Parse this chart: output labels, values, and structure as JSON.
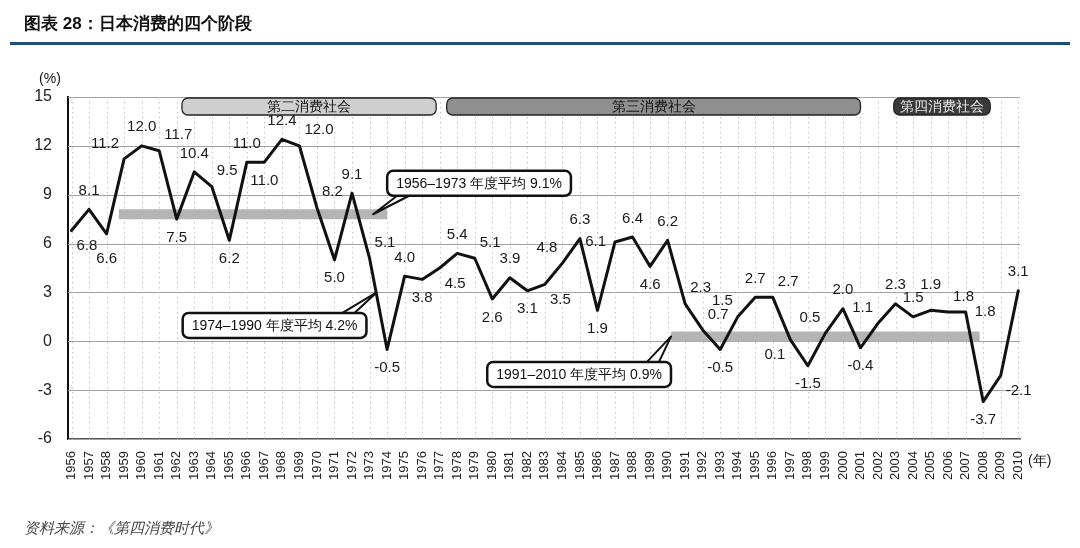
{
  "chart_data": {
    "type": "line",
    "title": "图表 28：日本消费的四个阶段",
    "xlabel": "(年)",
    "ylabel": "(%)",
    "x": [
      1956,
      1957,
      1958,
      1959,
      1960,
      1961,
      1962,
      1963,
      1964,
      1965,
      1966,
      1967,
      1968,
      1969,
      1970,
      1971,
      1972,
      1973,
      1974,
      1975,
      1976,
      1977,
      1978,
      1979,
      1980,
      1981,
      1982,
      1983,
      1984,
      1985,
      1986,
      1987,
      1988,
      1989,
      1990,
      1991,
      1992,
      1993,
      1994,
      1995,
      1996,
      1997,
      1998,
      1999,
      2000,
      2001,
      2002,
      2003,
      2004,
      2005,
      2006,
      2007,
      2008,
      2009,
      2010
    ],
    "series": [
      {
        "color": "#111111",
        "values": [
          6.8,
          8.1,
          6.6,
          11.2,
          12.0,
          11.7,
          7.5,
          10.4,
          9.5,
          6.2,
          11.0,
          11.0,
          12.4,
          12.0,
          8.2,
          5.0,
          9.1,
          5.1,
          -0.5,
          4.0,
          3.8,
          4.5,
          5.4,
          5.1,
          2.6,
          3.9,
          3.1,
          3.5,
          4.8,
          6.3,
          1.9,
          6.1,
          6.4,
          4.6,
          6.2,
          2.3,
          0.7,
          -0.5,
          1.5,
          2.7,
          2.7,
          0.1,
          -1.5,
          0.5,
          2.0,
          -0.4,
          1.1,
          2.3,
          1.5,
          1.9,
          1.8,
          1.8,
          -3.7,
          -2.1,
          3.1
        ],
        "value_labels": [
          "6.8",
          "8.1",
          "6.6",
          "11.2",
          "12.0",
          "11.7",
          "7.5",
          "10.4",
          "9.5",
          "6.2",
          "11.0",
          "11.0",
          "12.4",
          "12.0",
          "8.2",
          "5.0",
          "9.1",
          "5.1",
          "-0.5",
          "4.0",
          "3.8",
          "4.5",
          "5.4",
          "5.1",
          "2.6",
          "3.9",
          "3.1",
          "3.5",
          "4.8",
          "6.3",
          "1.9",
          "6.1",
          "6.4",
          "4.6",
          "6.2",
          "2.3",
          "0.7",
          "-0.5",
          "1.5",
          "2.7",
          "2.7",
          "0.1",
          "-1.5",
          "0.5",
          "2.0",
          "-0.4",
          "1.1",
          "2.3",
          "1.5",
          "1.9",
          "1.8",
          "1.8",
          "-3.7",
          "-2.1",
          "3.1"
        ]
      },
      {
        "type": "line",
        "color": "#b4b4b4",
        "x": [
          1958.7,
          1974.0
        ],
        "values": [
          7.8,
          7.8
        ]
      },
      {
        "type": "line",
        "color": "#b4b4b4",
        "x": [
          1990.2,
          2007.8
        ],
        "values": [
          0.3,
          0.3
        ]
      }
    ],
    "xlim": [
      1955.8,
      2010.1
    ],
    "xticks": [
      1956,
      1957,
      1958,
      1959,
      1960,
      1961,
      1962,
      1963,
      1964,
      1965,
      1966,
      1967,
      1968,
      1969,
      1970,
      1971,
      1972,
      1973,
      1974,
      1975,
      1976,
      1977,
      1978,
      1979,
      1980,
      1981,
      1982,
      1983,
      1984,
      1985,
      1986,
      1987,
      1988,
      1989,
      1990,
      1991,
      1992,
      1993,
      1994,
      1995,
      1996,
      1997,
      1998,
      1999,
      2000,
      2001,
      2002,
      2003,
      2004,
      2005,
      2006,
      2007,
      2008,
      2009,
      2010
    ],
    "ylim": [
      -6,
      15
    ],
    "yticks": [
      15,
      12,
      9,
      6,
      3,
      0,
      -3,
      -6
    ],
    "grid": true,
    "bands": [
      {
        "axis": "x",
        "from": 1962.3,
        "to": 1976.8,
        "label": "第二消费社会",
        "color": "#cfcfcf"
      },
      {
        "axis": "x",
        "from": 1977.4,
        "to": 2001.0,
        "label": "第三消费社会",
        "color": "#8f8f8f"
      },
      {
        "axis": "x",
        "from": 2002.9,
        "to": 2008.4,
        "label": "第四消费社会",
        "color": "#3a3a3a"
      }
    ],
    "annotations": [
      {
        "text": "1956–1973 年度平均 9.1%",
        "x": 1973.2,
        "y": 7.8
      },
      {
        "text": "1974–1990 年度平均 4.2%",
        "x": 1973.4,
        "y": 3.0
      },
      {
        "text": "1991–2010 年度平均 0.9%",
        "x": 1990.2,
        "y": 0.3
      },
      "资料来源：《第四消费时代》"
    ]
  }
}
